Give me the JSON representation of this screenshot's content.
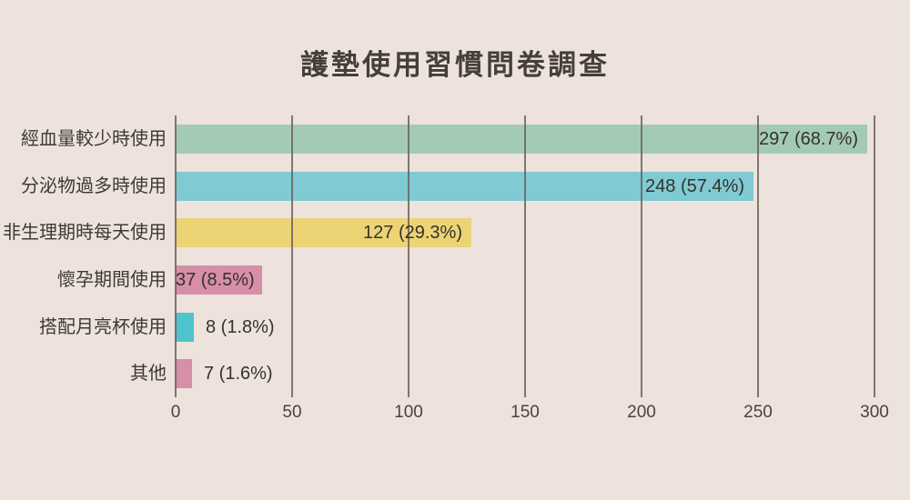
{
  "title": "護墊使用習慣問卷調查",
  "colors": {
    "background": "#ede3dc",
    "gridline": "#6a635d",
    "text": "#453e39"
  },
  "chart_data": {
    "type": "bar",
    "orientation": "horizontal",
    "title": "護墊使用習慣問卷調查",
    "categories": [
      "經血量較少時使用",
      "分泌物過多時使用",
      "非生理期時每天使用",
      "懷孕期間使用",
      "搭配月亮杯使用",
      "其他"
    ],
    "values": [
      297,
      248,
      127,
      37,
      8,
      7
    ],
    "percents": [
      68.7,
      57.4,
      29.3,
      8.5,
      1.8,
      1.6
    ],
    "value_labels": [
      "297 (68.7%)",
      "248 (57.4%)",
      "127 (29.3%)",
      "37 (8.5%)",
      "8 (1.8%)",
      "7 (1.6%)"
    ],
    "bar_colors": [
      "#a3cbb4",
      "#7fcad3",
      "#ecd475",
      "#d78ea7",
      "#4fc4cd",
      "#d78ea7"
    ],
    "value_label_inside": [
      true,
      true,
      true,
      true,
      false,
      false
    ],
    "xticks": [
      0,
      50,
      100,
      150,
      200,
      250,
      300
    ],
    "xtick_labels": [
      "0",
      "50",
      "100",
      "150",
      "200",
      "250",
      "300"
    ],
    "xlim": [
      0,
      300
    ],
    "xlabel": "",
    "ylabel": "",
    "grid": true,
    "legend": false
  }
}
